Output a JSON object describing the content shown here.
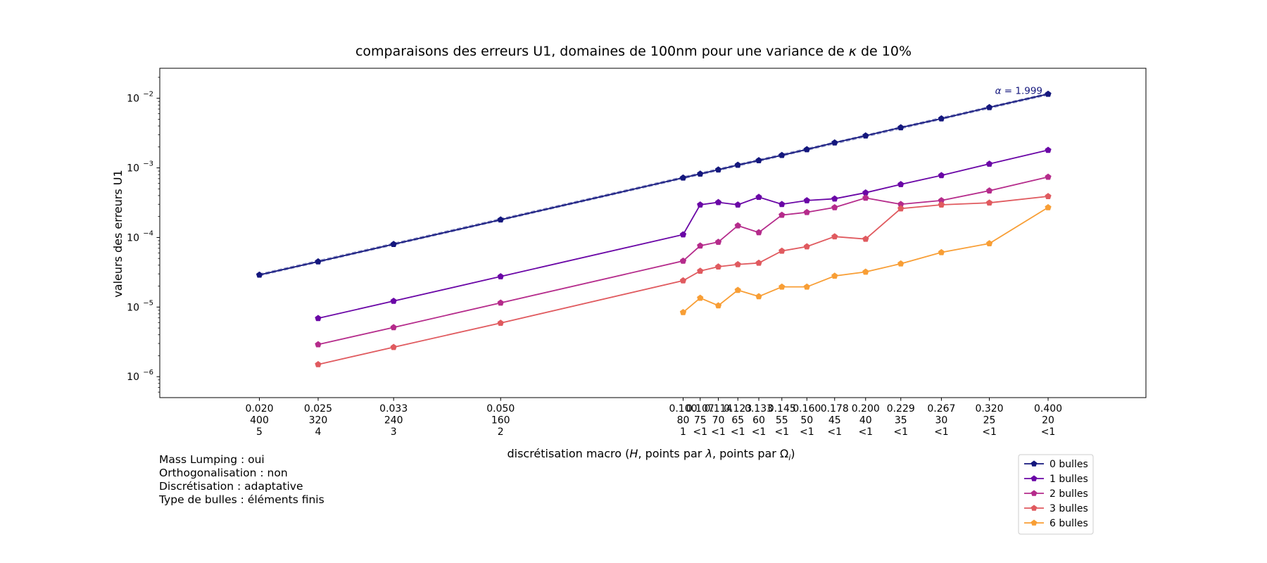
{
  "chart_data": {
    "type": "line",
    "title_main": "comparaisons des erreurs U1, domaines de 100nm pour une variance de ",
    "title_symbol": "κ",
    "title_tail": " de 10%",
    "xlabel_main": "discrétisation macro (",
    "xlabel_symbol_1": "H",
    "xlabel_mid": ", points par ",
    "xlabel_symbol_2": "λ",
    "xlabel_mid2": ", points par ",
    "xlabel_symbol_3": "Ω",
    "xlabel_sub": "i",
    "xlabel_end": ")",
    "ylabel": "valeurs des erreurs U1",
    "y_scale": "log",
    "x_scale": "log",
    "ylim": [
      5e-07,
      0.027
    ],
    "xlim": [
      0.0137,
      0.58
    ],
    "yticks": [
      {
        "value": 1e-06,
        "base": "10",
        "exp": "−6"
      },
      {
        "value": 1e-05,
        "base": "10",
        "exp": "−5"
      },
      {
        "value": 0.0001,
        "base": "10",
        "exp": "−4"
      },
      {
        "value": 0.001,
        "base": "10",
        "exp": "−3"
      },
      {
        "value": 0.01,
        "base": "10",
        "exp": "−2"
      }
    ],
    "x_ticks": [
      {
        "H": 0.02,
        "line1": "0.020",
        "line2": "400",
        "line3": "5"
      },
      {
        "H": 0.025,
        "line1": "0.025",
        "line2": "320",
        "line3": "4"
      },
      {
        "H": 0.0333,
        "line1": "0.033",
        "line2": "240",
        "line3": "3"
      },
      {
        "H": 0.05,
        "line1": "0.050",
        "line2": "160",
        "line3": "2"
      },
      {
        "H": 0.1,
        "line1": "0.100",
        "line2": "80",
        "line3": "1"
      },
      {
        "H": 0.1067,
        "line1": "0.107",
        "line2": "75",
        "line3": "<1"
      },
      {
        "H": 0.1143,
        "line1": "0.114",
        "line2": "70",
        "line3": "<1"
      },
      {
        "H": 0.1231,
        "line1": "0.123",
        "line2": "65",
        "line3": "<1"
      },
      {
        "H": 0.1333,
        "line1": "0.133",
        "line2": "60",
        "line3": "<1"
      },
      {
        "H": 0.1455,
        "line1": "0.145",
        "line2": "55",
        "line3": "<1"
      },
      {
        "H": 0.16,
        "line1": "0.160",
        "line2": "50",
        "line3": "<1"
      },
      {
        "H": 0.1778,
        "line1": "0.178",
        "line2": "45",
        "line3": "<1"
      },
      {
        "H": 0.2,
        "line1": "0.200",
        "line2": "40",
        "line3": "<1"
      },
      {
        "H": 0.2286,
        "line1": "0.229",
        "line2": "35",
        "line3": "<1"
      },
      {
        "H": 0.2667,
        "line1": "0.267",
        "line2": "30",
        "line3": "<1"
      },
      {
        "H": 0.32,
        "line1": "0.320",
        "line2": "25",
        "line3": "<1"
      },
      {
        "H": 0.4,
        "line1": "0.400",
        "line2": "20",
        "line3": "<1"
      }
    ],
    "series": [
      {
        "name": "0 bulles",
        "color": "#14177d",
        "x": [
          0.02,
          0.025,
          0.0333,
          0.05,
          0.1,
          0.1067,
          0.1143,
          0.1231,
          0.1333,
          0.1455,
          0.16,
          0.1778,
          0.2,
          0.2286,
          0.2667,
          0.32,
          0.4
        ],
        "y": [
          2.9e-05,
          4.5e-05,
          8e-05,
          0.00018,
          0.00072,
          0.00082,
          0.00094,
          0.0011,
          0.00128,
          0.00152,
          0.00184,
          0.0023,
          0.0029,
          0.0038,
          0.0051,
          0.0074,
          0.0115
        ]
      },
      {
        "name": "1 bulles",
        "color": "#6a06a6",
        "x": [
          0.025,
          0.0333,
          0.05,
          0.1,
          0.1067,
          0.1143,
          0.1231,
          0.1333,
          0.1455,
          0.16,
          0.1778,
          0.2,
          0.2286,
          0.2667,
          0.32,
          0.4
        ],
        "y": [
          6.9e-06,
          1.22e-05,
          2.75e-05,
          0.00011,
          0.000295,
          0.00032,
          0.000295,
          0.00038,
          0.0003,
          0.00034,
          0.00036,
          0.00044,
          0.00058,
          0.00078,
          0.00114,
          0.0018
        ]
      },
      {
        "name": "2 bulles",
        "color": "#b52b8b",
        "x": [
          0.025,
          0.0333,
          0.05,
          0.1,
          0.1067,
          0.1143,
          0.1231,
          0.1333,
          0.1455,
          0.16,
          0.1778,
          0.2,
          0.2286,
          0.2667,
          0.32,
          0.4
        ],
        "y": [
          2.9e-06,
          5.1e-06,
          1.15e-05,
          4.6e-05,
          7.6e-05,
          8.6e-05,
          0.000148,
          0.000118,
          0.00021,
          0.00023,
          0.00027,
          0.00037,
          0.0003,
          0.00034,
          0.00047,
          0.00074
        ]
      },
      {
        "name": "3 bulles",
        "color": "#e05a5f",
        "x": [
          0.025,
          0.0333,
          0.05,
          0.1,
          0.1067,
          0.1143,
          0.1231,
          0.1333,
          0.1455,
          0.16,
          0.1778,
          0.2,
          0.2286,
          0.2667,
          0.32,
          0.4
        ],
        "y": [
          1.5e-06,
          2.65e-06,
          5.9e-06,
          2.4e-05,
          3.3e-05,
          3.8e-05,
          4.1e-05,
          4.3e-05,
          6.4e-05,
          7.4e-05,
          0.000103,
          9.5e-05,
          0.00026,
          0.000295,
          0.000315,
          0.00039
        ]
      },
      {
        "name": "6 bulles",
        "color": "#f89e35",
        "x": [
          0.1,
          0.1067,
          0.1143,
          0.1231,
          0.1333,
          0.1455,
          0.16,
          0.1778,
          0.2,
          0.2286,
          0.2667,
          0.32,
          0.4
        ],
        "y": [
          8.4e-06,
          1.35e-05,
          1.05e-05,
          1.75e-05,
          1.42e-05,
          1.95e-05,
          1.95e-05,
          2.8e-05,
          3.2e-05,
          4.2e-05,
          6.1e-05,
          8.2e-05,
          0.00027
        ]
      }
    ],
    "fit_line": {
      "color": "#7f84bf",
      "x": [
        0.02,
        0.4
      ],
      "y": [
        2.9e-05,
        0.0115
      ]
    },
    "annotation": {
      "symbol": "α",
      "text": " = 1.999",
      "color": "#14177d",
      "x": 0.4,
      "y": 0.0115
    },
    "legend_position": "lower right, below axes"
  },
  "info": {
    "line1": "Mass Lumping : oui",
    "line2": "Orthogonalisation : non",
    "line3": "Discrétisation : adaptative",
    "line4": "Type de bulles : éléments finis"
  }
}
